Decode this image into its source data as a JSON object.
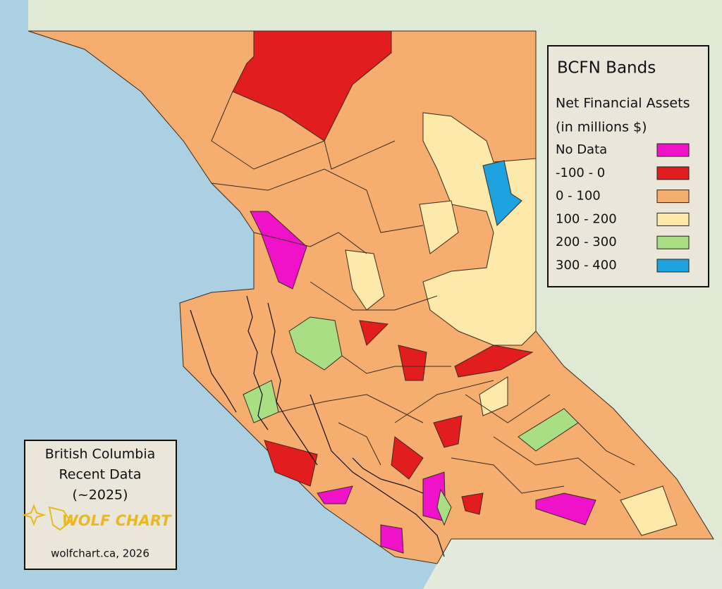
{
  "legend": {
    "title": "BCFN Bands",
    "subtitle": [
      "Net Financial Assets",
      "(in millions $)"
    ],
    "items": [
      {
        "label": "No Data",
        "color": "#ef12c8"
      },
      {
        "label": "-100 - 0",
        "color": "#e11d1d"
      },
      {
        "label": "0 - 100",
        "color": "#f5ae6f"
      },
      {
        "label": "100 - 200",
        "color": "#fde9a9"
      },
      {
        "label": "200 - 300",
        "color": "#a9de85"
      },
      {
        "label": "300 - 400",
        "color": "#1ea1df"
      }
    ]
  },
  "info": {
    "lines": [
      "British Columbia",
      "Recent Data",
      "(~2025)"
    ],
    "logo": "WOLF CHART",
    "credit": "wolfchart.ca, 2026"
  }
}
